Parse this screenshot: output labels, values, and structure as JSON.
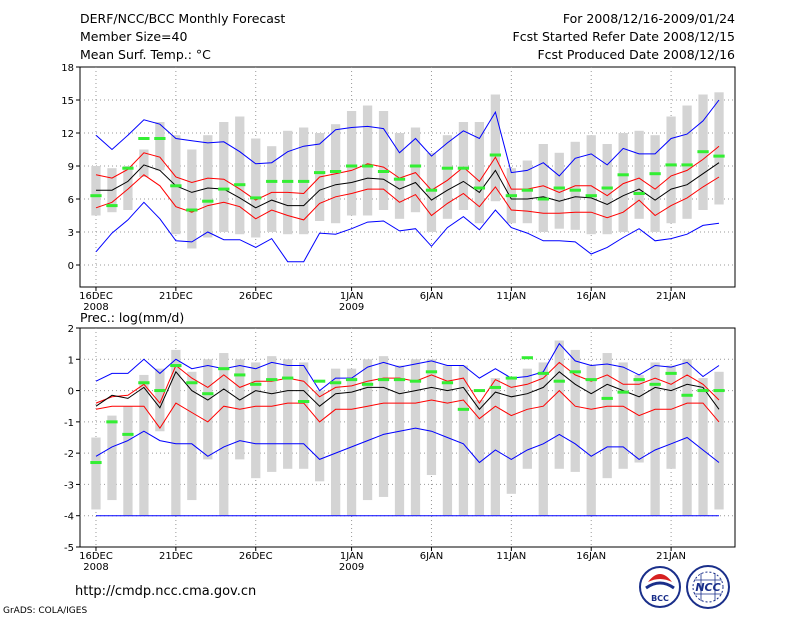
{
  "header": {
    "left_title": "DERF/NCC/BCC Monthly Forecast",
    "left_member": "Member Size=40",
    "left_var": "Mean Surf. Temp.: °C",
    "right_period": "For 2008/12/16-2009/01/24",
    "right_started": "Fcst Started Refer Date 2008/12/15",
    "right_produced": "Fcst Produced Date 2008/12/16"
  },
  "prec_label": "Prec.: log(mm/d)",
  "footer": {
    "url": "http://cmdp.ncc.cma.gov.cn",
    "grads": "GrADS: COLA/IGES"
  },
  "logos": {
    "bcc": "BCC",
    "ncc": "NCC"
  },
  "colors": {
    "envelope": "#0000ff",
    "spread": "#ff0000",
    "mean": "#000000",
    "clim": "#33ee33",
    "box": "#d4d4d4",
    "grid": "#999999"
  },
  "chart_data": [
    {
      "type": "line",
      "title": "Mean Surf. Temp.: °C",
      "x": [
        1,
        2,
        3,
        4,
        5,
        6,
        7,
        8,
        9,
        10,
        11,
        12,
        13,
        14,
        15,
        16,
        17,
        18,
        19,
        20,
        21,
        22,
        23,
        24,
        25,
        26,
        27,
        28,
        29,
        30,
        31,
        32,
        33,
        34,
        35,
        36,
        37,
        38,
        39,
        40
      ],
      "x_ticks": [
        {
          "x": 1,
          "label": "16DEC",
          "sub": "2008"
        },
        {
          "x": 6,
          "label": "21DEC"
        },
        {
          "x": 11,
          "label": "26DEC"
        },
        {
          "x": 17,
          "label": "1JAN",
          "sub": "2009"
        },
        {
          "x": 22,
          "label": "6JAN"
        },
        {
          "x": 27,
          "label": "11JAN"
        },
        {
          "x": 32,
          "label": "16JAN"
        },
        {
          "x": 37,
          "label": "21JAN"
        }
      ],
      "ylim": [
        -2,
        18
      ],
      "yticks": [
        0,
        3,
        6,
        9,
        12,
        15,
        18
      ],
      "series": [
        {
          "name": "max",
          "values": [
            11.8,
            10.5,
            11.8,
            13.2,
            12.8,
            11.5,
            11.3,
            11.1,
            11.2,
            10.3,
            9.2,
            9.3,
            10.3,
            10.8,
            11.0,
            12.3,
            12.5,
            12.6,
            12.4,
            10.2,
            11.5,
            9.9,
            11.1,
            12.2,
            11.5,
            13.9,
            8.4,
            8.6,
            9.3,
            8.1,
            9.7,
            10.1,
            9.1,
            10.6,
            10.1,
            10.1,
            11.5,
            11.9,
            13.1,
            15.0
          ]
        },
        {
          "name": "upper",
          "values": [
            8.2,
            7.9,
            8.7,
            10.2,
            9.8,
            8.0,
            7.5,
            7.9,
            7.8,
            6.9,
            5.9,
            6.6,
            6.6,
            6.5,
            8.0,
            8.3,
            8.6,
            9.2,
            8.9,
            7.9,
            8.4,
            6.8,
            7.7,
            8.9,
            7.6,
            9.8,
            6.9,
            6.9,
            7.2,
            6.6,
            7.2,
            7.2,
            6.3,
            7.4,
            7.9,
            6.9,
            8.1,
            8.6,
            9.6,
            10.8
          ]
        },
        {
          "name": "mean",
          "values": [
            6.8,
            6.8,
            7.6,
            9.1,
            8.6,
            7.2,
            6.6,
            7.0,
            6.9,
            6.1,
            5.2,
            5.9,
            5.4,
            5.4,
            6.8,
            7.3,
            7.5,
            7.9,
            7.8,
            6.9,
            7.5,
            5.9,
            6.8,
            7.6,
            6.6,
            8.6,
            6.0,
            6.0,
            6.2,
            5.8,
            6.2,
            6.1,
            5.5,
            6.3,
            6.9,
            5.9,
            6.9,
            7.3,
            8.3,
            9.3
          ]
        },
        {
          "name": "lower",
          "values": [
            5.2,
            5.7,
            6.9,
            8.2,
            7.2,
            5.3,
            4.8,
            5.4,
            5.7,
            5.3,
            4.2,
            5.0,
            4.5,
            4.1,
            5.6,
            6.2,
            6.5,
            6.9,
            6.9,
            5.7,
            6.4,
            4.5,
            5.6,
            6.5,
            5.3,
            7.1,
            5.0,
            4.9,
            4.7,
            4.7,
            4.8,
            4.8,
            4.3,
            4.8,
            5.9,
            4.5,
            5.4,
            6.1,
            7.1,
            8.0
          ]
        },
        {
          "name": "min",
          "values": [
            1.2,
            2.9,
            4.1,
            5.7,
            4.2,
            2.2,
            2.1,
            3.0,
            2.3,
            2.3,
            1.6,
            2.4,
            0.3,
            0.3,
            2.9,
            2.8,
            3.3,
            3.9,
            4.0,
            3.1,
            3.3,
            1.7,
            3.4,
            4.4,
            3.2,
            5.0,
            3.4,
            2.9,
            2.2,
            2.2,
            2.1,
            1.0,
            1.6,
            2.5,
            3.3,
            2.2,
            2.4,
            2.8,
            3.6,
            3.8
          ]
        },
        {
          "name": "climatology",
          "values": [
            6.3,
            5.4,
            8.8,
            11.5,
            11.5,
            7.2,
            5.0,
            5.8,
            6.9,
            7.3,
            6.1,
            7.6,
            7.6,
            7.6,
            8.4,
            8.5,
            9.0,
            9.0,
            8.5,
            7.8,
            9.0,
            6.8,
            8.8,
            8.8,
            7.0,
            10.0,
            6.3,
            6.8,
            6.0,
            7.0,
            6.8,
            6.3,
            7.0,
            8.2,
            6.5,
            8.3,
            9.1,
            9.1,
            10.3,
            9.9
          ]
        }
      ],
      "boxes": {
        "name": "ensemble range",
        "low": [
          4.5,
          4.8,
          5.0,
          8.0,
          8.6,
          2.8,
          1.5,
          2.5,
          3.0,
          2.8,
          2.5,
          3.0,
          2.8,
          2.8,
          4.0,
          3.8,
          4.5,
          4.5,
          5.0,
          4.2,
          4.8,
          3.0,
          4.2,
          5.0,
          3.8,
          5.8,
          3.8,
          3.8,
          3.0,
          3.3,
          3.2,
          2.8,
          2.8,
          3.0,
          4.2,
          3.0,
          3.8,
          4.2,
          5.0,
          5.5
        ],
        "high": [
          9.0,
          8.8,
          9.0,
          10.5,
          13.0,
          11.8,
          10.5,
          11.8,
          13.0,
          13.5,
          11.5,
          10.8,
          12.2,
          12.5,
          12.0,
          12.8,
          14.0,
          14.5,
          14.0,
          12.0,
          12.5,
          10.2,
          11.8,
          13.0,
          13.0,
          15.5,
          8.8,
          9.5,
          11.0,
          10.2,
          11.2,
          11.8,
          11.0,
          12.0,
          12.2,
          11.8,
          13.5,
          14.5,
          15.5,
          15.7
        ]
      }
    },
    {
      "type": "line",
      "title": "Prec.: log(mm/d)",
      "x": [
        1,
        2,
        3,
        4,
        5,
        6,
        7,
        8,
        9,
        10,
        11,
        12,
        13,
        14,
        15,
        16,
        17,
        18,
        19,
        20,
        21,
        22,
        23,
        24,
        25,
        26,
        27,
        28,
        29,
        30,
        31,
        32,
        33,
        34,
        35,
        36,
        37,
        38,
        39,
        40
      ],
      "x_ticks": [
        {
          "x": 1,
          "label": "16DEC",
          "sub": "2008"
        },
        {
          "x": 6,
          "label": "21DEC"
        },
        {
          "x": 11,
          "label": "26DEC"
        },
        {
          "x": 17,
          "label": "1JAN",
          "sub": "2009"
        },
        {
          "x": 22,
          "label": "6JAN"
        },
        {
          "x": 27,
          "label": "11JAN"
        },
        {
          "x": 32,
          "label": "16JAN"
        },
        {
          "x": 37,
          "label": "21JAN"
        }
      ],
      "ylim": [
        -5,
        2
      ],
      "yticks": [
        -5,
        -4,
        -3,
        -2,
        -1,
        0,
        1,
        2
      ],
      "series": [
        {
          "name": "max",
          "values": [
            0.3,
            0.55,
            0.55,
            1.0,
            0.55,
            1.0,
            0.7,
            0.8,
            0.7,
            0.8,
            0.7,
            0.9,
            0.8,
            0.8,
            0.0,
            0.4,
            0.4,
            0.75,
            0.9,
            0.75,
            0.85,
            0.95,
            0.8,
            0.8,
            0.4,
            0.7,
            0.4,
            0.45,
            0.6,
            1.5,
            0.95,
            0.8,
            0.85,
            0.75,
            0.5,
            0.8,
            0.75,
            0.9,
            0.45,
            0.8
          ]
        },
        {
          "name": "upper",
          "values": [
            -0.4,
            -0.2,
            -0.15,
            0.2,
            -0.4,
            0.8,
            0.4,
            0.1,
            0.5,
            0.1,
            0.3,
            0.3,
            0.4,
            0.3,
            -0.2,
            0.1,
            0.15,
            0.3,
            0.4,
            0.4,
            0.3,
            0.5,
            0.3,
            0.4,
            -0.4,
            0.35,
            0.1,
            0.2,
            0.4,
            0.9,
            0.5,
            0.3,
            0.5,
            0.2,
            0.2,
            0.4,
            0.2,
            0.5,
            0.2,
            -0.3
          ]
        },
        {
          "name": "mean",
          "values": [
            -0.5,
            -0.15,
            -0.25,
            0.1,
            -0.55,
            0.6,
            0.0,
            -0.3,
            0.05,
            -0.3,
            0.0,
            -0.1,
            0.0,
            0.0,
            -0.5,
            -0.1,
            -0.05,
            0.1,
            0.1,
            -0.1,
            0.0,
            0.1,
            0.0,
            0.1,
            -0.6,
            -0.05,
            -0.2,
            -0.1,
            0.1,
            0.6,
            0.2,
            -0.1,
            0.2,
            0.0,
            -0.2,
            0.1,
            0.0,
            0.2,
            0.1,
            -0.6
          ]
        },
        {
          "name": "lower",
          "values": [
            -0.6,
            -0.5,
            -0.5,
            -0.5,
            -1.2,
            -0.4,
            -0.7,
            -1.0,
            -0.5,
            -0.6,
            -0.5,
            -0.5,
            -0.4,
            -0.4,
            -1.0,
            -0.6,
            -0.6,
            -0.5,
            -0.4,
            -0.4,
            -0.4,
            -0.3,
            -0.4,
            -0.3,
            -0.9,
            -0.5,
            -0.8,
            -0.6,
            -0.5,
            0.0,
            -0.5,
            -0.6,
            -0.5,
            -0.5,
            -0.8,
            -0.6,
            -0.6,
            -0.4,
            -0.4,
            -1.0
          ]
        },
        {
          "name": "min",
          "values": [
            -2.1,
            -1.8,
            -1.6,
            -1.3,
            -1.6,
            -1.7,
            -1.7,
            -2.1,
            -1.8,
            -1.6,
            -1.7,
            -1.7,
            -1.7,
            -1.7,
            -2.2,
            -2.0,
            -1.8,
            -1.6,
            -1.4,
            -1.3,
            -1.2,
            -1.3,
            -1.5,
            -1.7,
            -2.3,
            -1.9,
            -2.2,
            -1.9,
            -1.7,
            -1.4,
            -1.7,
            -2.1,
            -1.8,
            -1.8,
            -2.2,
            -1.9,
            -1.7,
            -1.5,
            -1.9,
            -2.3
          ]
        },
        {
          "name": "climatology",
          "values": [
            -2.3,
            -1.0,
            -1.4,
            0.25,
            0.0,
            0.8,
            0.25,
            -0.1,
            0.7,
            0.5,
            0.2,
            0.35,
            0.4,
            -0.35,
            0.3,
            0.25,
            0.35,
            0.2,
            0.35,
            0.35,
            0.3,
            0.6,
            0.25,
            -0.6,
            0.0,
            0.1,
            0.4,
            1.05,
            0.55,
            0.3,
            0.6,
            0.35,
            -0.25,
            -0.05,
            0.35,
            0.2,
            0.55,
            -0.15,
            0.0,
            0.0
          ]
        }
      ],
      "floor_line": {
        "name": "dry limit",
        "value": -4.0
      },
      "boxes": {
        "name": "ensemble range",
        "low": [
          -3.8,
          -3.5,
          -4.0,
          -4.0,
          -1.3,
          -4.0,
          -3.5,
          -2.2,
          -4.0,
          -2.2,
          -2.8,
          -2.6,
          -2.5,
          -2.5,
          -2.9,
          -4.0,
          -4.0,
          -3.5,
          -3.4,
          -4.0,
          -4.0,
          -2.7,
          -4.0,
          -4.0,
          -4.0,
          -4.0,
          -3.3,
          -2.5,
          -4.0,
          -2.5,
          -2.6,
          -4.0,
          -2.8,
          -2.5,
          -2.3,
          -4.0,
          -2.5,
          -4.0,
          -4.0,
          -3.8
        ],
        "high": [
          -1.5,
          -0.8,
          -0.5,
          0.5,
          0.7,
          1.3,
          0.6,
          1.0,
          1.2,
          1.0,
          0.9,
          1.1,
          1.0,
          0.9,
          0.0,
          0.7,
          0.7,
          1.0,
          1.1,
          0.8,
          1.0,
          1.0,
          0.8,
          0.8,
          -0.3,
          0.4,
          0.4,
          0.7,
          0.9,
          1.6,
          1.3,
          0.8,
          1.2,
          0.9,
          0.5,
          0.9,
          0.8,
          1.0,
          0.4,
          0.6
        ]
      }
    }
  ]
}
